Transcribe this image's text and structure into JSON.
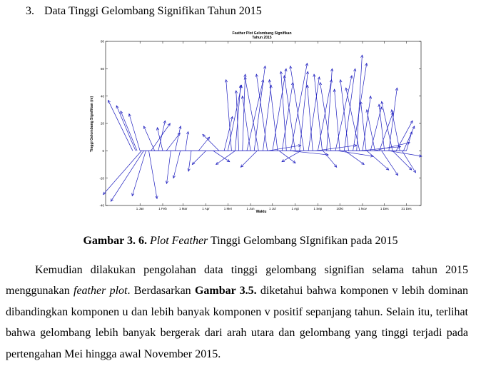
{
  "section": {
    "number": "3.",
    "title": "Data Tinggi Gelombang Signifikan Tahun 2015"
  },
  "chart_data": {
    "type": "feather",
    "title": "Feather Plot Gelombang Signifikan",
    "subtitle": "Tahun 2015",
    "xlabel": "Waktu",
    "ylabel": "Tinggi Gelombang Signifikan (m)",
    "ylim": [
      -40,
      80
    ],
    "yticks": [
      -40,
      -20,
      0,
      20,
      40,
      60,
      80
    ],
    "xticks": [
      {
        "label": "1 Jan",
        "x": 0
      },
      {
        "label": "1 Feb",
        "x": 31
      },
      {
        "label": "1 Mar",
        "x": 59
      },
      {
        "label": "1 Apr",
        "x": 90
      },
      {
        "label": "1 Mei",
        "x": 120
      },
      {
        "label": "1 Jun",
        "x": 151
      },
      {
        "label": "1 Jul",
        "x": 181
      },
      {
        "label": "1 Agt",
        "x": 212
      },
      {
        "label": "1 Sep",
        "x": 243
      },
      {
        "label": "1Okt",
        "x": 273
      },
      {
        "label": "1 Nov",
        "x": 304
      },
      {
        "label": "1 Des",
        "x": 334
      },
      {
        "label": "31 Des",
        "x": 364
      }
    ],
    "xlim": [
      -47,
      384
    ],
    "line_color": "#1f1fbf",
    "grid": false,
    "series": [
      {
        "values": [
          {
            "x": -10,
            "u": -18,
            "v": 37
          },
          {
            "x": -6,
            "u": -14,
            "v": 33
          },
          {
            "x": -4,
            "u": -12,
            "v": 29
          },
          {
            "x": 0,
            "u": -8,
            "v": 27
          },
          {
            "x": 2,
            "u": -28,
            "v": -32
          },
          {
            "x": 5,
            "u": -24,
            "v": -37
          },
          {
            "x": 8,
            "u": -10,
            "v": -33
          },
          {
            "x": 12,
            "u": 6,
            "v": -35
          },
          {
            "x": 15,
            "u": 14,
            "v": 20
          },
          {
            "x": 20,
            "u": -8,
            "v": 18
          },
          {
            "x": 25,
            "u": 5,
            "v": 22
          },
          {
            "x": 31,
            "u": -4,
            "v": 17
          },
          {
            "x": 36,
            "u": 10,
            "v": 13
          },
          {
            "x": 42,
            "u": -3,
            "v": -24
          },
          {
            "x": 48,
            "u": 4,
            "v": 18
          },
          {
            "x": 55,
            "u": -5,
            "v": -20
          },
          {
            "x": 62,
            "u": 2,
            "v": 14
          },
          {
            "x": 70,
            "u": -2,
            "v": -15
          },
          {
            "x": 80,
            "u": 8,
            "v": 10
          },
          {
            "x": 90,
            "u": -10,
            "v": -10
          },
          {
            "x": 100,
            "u": 12,
            "v": -8
          },
          {
            "x": 108,
            "u": -12,
            "v": 12
          },
          {
            "x": 115,
            "u": 6,
            "v": 25
          },
          {
            "x": 120,
            "u": 10,
            "v": 48
          },
          {
            "x": 125,
            "u": -4,
            "v": 52
          },
          {
            "x": 130,
            "u": 4,
            "v": 48
          },
          {
            "x": 135,
            "u": -2,
            "v": 44
          },
          {
            "x": 140,
            "u": 2,
            "v": 56
          },
          {
            "x": 146,
            "u": 12,
            "v": 52
          },
          {
            "x": 151,
            "u": -6,
            "v": 40
          },
          {
            "x": 156,
            "u": 8,
            "v": 62
          },
          {
            "x": 162,
            "u": -10,
            "v": 54
          },
          {
            "x": 168,
            "u": 6,
            "v": 48
          },
          {
            "x": 174,
            "u": -8,
            "v": 56
          },
          {
            "x": 181,
            "u": 10,
            "v": 60
          },
          {
            "x": 188,
            "u": -6,
            "v": 52
          },
          {
            "x": 194,
            "u": 8,
            "v": 50
          },
          {
            "x": 200,
            "u": -4,
            "v": 58
          },
          {
            "x": 206,
            "u": 12,
            "v": 64
          },
          {
            "x": 212,
            "u": -8,
            "v": 55
          },
          {
            "x": 218,
            "u": 6,
            "v": 58
          },
          {
            "x": 224,
            "u": -10,
            "v": 62
          },
          {
            "x": 230,
            "u": 8,
            "v": 54
          },
          {
            "x": 236,
            "u": -4,
            "v": 48
          },
          {
            "x": 243,
            "u": 10,
            "v": 52
          },
          {
            "x": 249,
            "u": -6,
            "v": 56
          },
          {
            "x": 255,
            "u": 4,
            "v": 60
          },
          {
            "x": 261,
            "u": -8,
            "v": 50
          },
          {
            "x": 267,
            "u": 12,
            "v": 55
          },
          {
            "x": 273,
            "u": -4,
            "v": 45
          },
          {
            "x": 279,
            "u": 8,
            "v": 60
          },
          {
            "x": 285,
            "u": -6,
            "v": 52
          },
          {
            "x": 291,
            "u": 10,
            "v": 64
          },
          {
            "x": 296,
            "u": 4,
            "v": 70
          },
          {
            "x": 300,
            "u": -10,
            "v": 46
          },
          {
            "x": 304,
            "u": 6,
            "v": 40
          },
          {
            "x": 309,
            "u": -4,
            "v": 36
          },
          {
            "x": 315,
            "u": 8,
            "v": 32
          },
          {
            "x": 321,
            "u": -6,
            "v": 30
          },
          {
            "x": 327,
            "u": 10,
            "v": 28
          },
          {
            "x": 334,
            "u": -4,
            "v": 34
          },
          {
            "x": 340,
            "u": 6,
            "v": 46
          },
          {
            "x": 345,
            "u": -8,
            "v": 36
          },
          {
            "x": 350,
            "u": 12,
            "v": 22
          },
          {
            "x": 355,
            "u": -6,
            "v": 30
          },
          {
            "x": 360,
            "u": 8,
            "v": 18
          },
          {
            "x": 364,
            "u": 4,
            "v": 14
          },
          {
            "x": 130,
            "u": -14,
            "v": -10
          },
          {
            "x": 160,
            "u": -12,
            "v": -12
          },
          {
            "x": 190,
            "u": 12,
            "v": -9
          },
          {
            "x": 220,
            "u": -14,
            "v": -8
          },
          {
            "x": 250,
            "u": 10,
            "v": -12
          },
          {
            "x": 280,
            "u": 14,
            "v": -10
          },
          {
            "x": 310,
            "u": 16,
            "v": -14
          },
          {
            "x": 330,
            "u": 12,
            "v": -18
          },
          {
            "x": 345,
            "u": 14,
            "v": -14
          },
          {
            "x": 358,
            "u": 10,
            "v": -16
          },
          {
            "x": 175,
            "u": 24,
            "v": 4
          },
          {
            "x": 205,
            "u": 28,
            "v": -3
          },
          {
            "x": 240,
            "u": 30,
            "v": 4
          },
          {
            "x": 270,
            "u": 26,
            "v": -4
          },
          {
            "x": 300,
            "u": 30,
            "v": 3
          },
          {
            "x": 320,
            "u": 26,
            "v": 6
          },
          {
            "x": 340,
            "u": 24,
            "v": -4
          }
        ]
      }
    ]
  },
  "caption": {
    "label": "Gambar 3. 6.",
    "italic": "Plot Feather",
    "rest": "Tinggi Gelombang SIgnifikan pada 2015"
  },
  "paragraph": {
    "part1": "Kemudian dilakukan pengolahan data tinggi gelombang signifian selama tahun 2015 menggunakan ",
    "italic": "feather plot",
    "part2": ". Berdasarkan ",
    "bold": "Gambar 3.5.",
    "part3": " diketahui bahwa komponen v lebih dominan dibandingkan komponen u dan lebih banyak komponen v positif sepanjang tahun. Selain itu, terlihat bahwa gelombang lebih banyak bergerak dari arah utara dan gelombang yang tinggi terjadi pada pertengahan Mei hingga awal November 2015."
  }
}
